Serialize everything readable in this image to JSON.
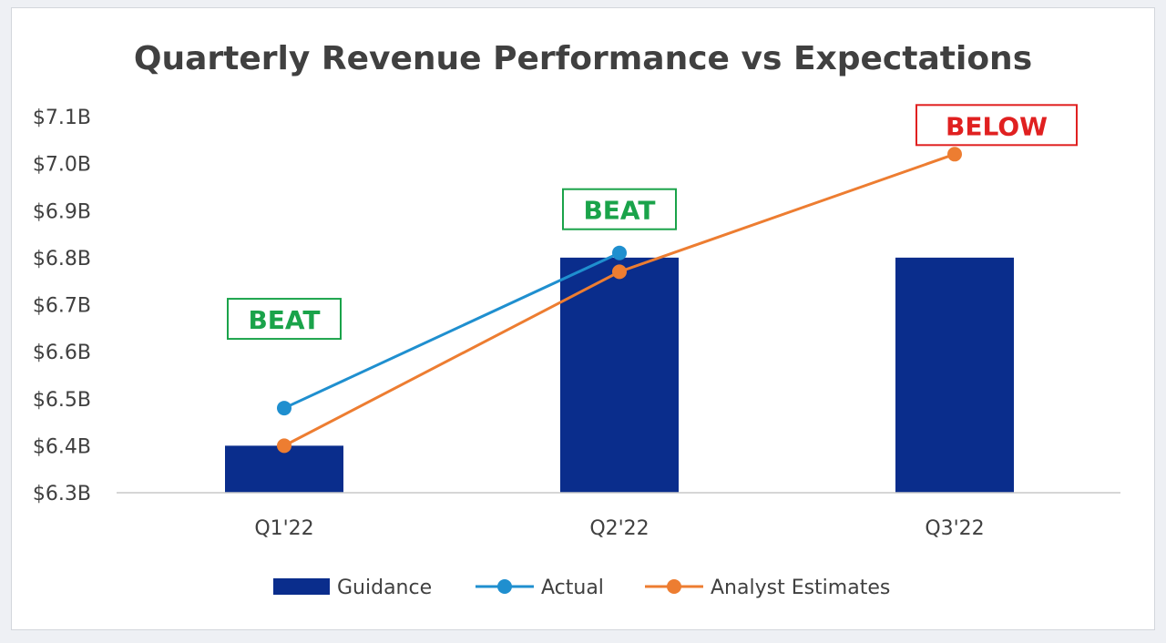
{
  "chart_data": {
    "type": "bar",
    "title": "Quarterly Revenue Performance vs Expectations",
    "xlabel": "",
    "ylabel": "",
    "categories": [
      "Q1'22",
      "Q2'22",
      "Q3'22"
    ],
    "ylim": [
      6.3,
      7.1
    ],
    "yticks": [
      6.3,
      6.4,
      6.5,
      6.6,
      6.7,
      6.8,
      6.9,
      7.0,
      7.1
    ],
    "ytick_labels": [
      "$6.3B",
      "$6.4B",
      "$6.5B",
      "$6.6B",
      "$6.7B",
      "$6.8B",
      "$6.9B",
      "$7.0B",
      "$7.1B"
    ],
    "grid": false,
    "legend_position": "bottom",
    "series": [
      {
        "name": "Guidance",
        "kind": "bar",
        "color": "#0a2d8c",
        "values": [
          6.4,
          6.8,
          6.8
        ]
      },
      {
        "name": "Actual",
        "kind": "line",
        "color": "#1f8fcf",
        "values": [
          6.48,
          6.81,
          null
        ]
      },
      {
        "name": "Analyst Estimates",
        "kind": "line",
        "color": "#ed7d31",
        "values": [
          6.4,
          6.77,
          7.02
        ]
      }
    ],
    "annotations": [
      {
        "text": "BEAT",
        "category_index": 0,
        "color": "#1aa34a"
      },
      {
        "text": "BEAT",
        "category_index": 1,
        "color": "#1aa34a"
      },
      {
        "text": "BELOW",
        "category_index": 2,
        "color": "#e02020"
      }
    ]
  }
}
